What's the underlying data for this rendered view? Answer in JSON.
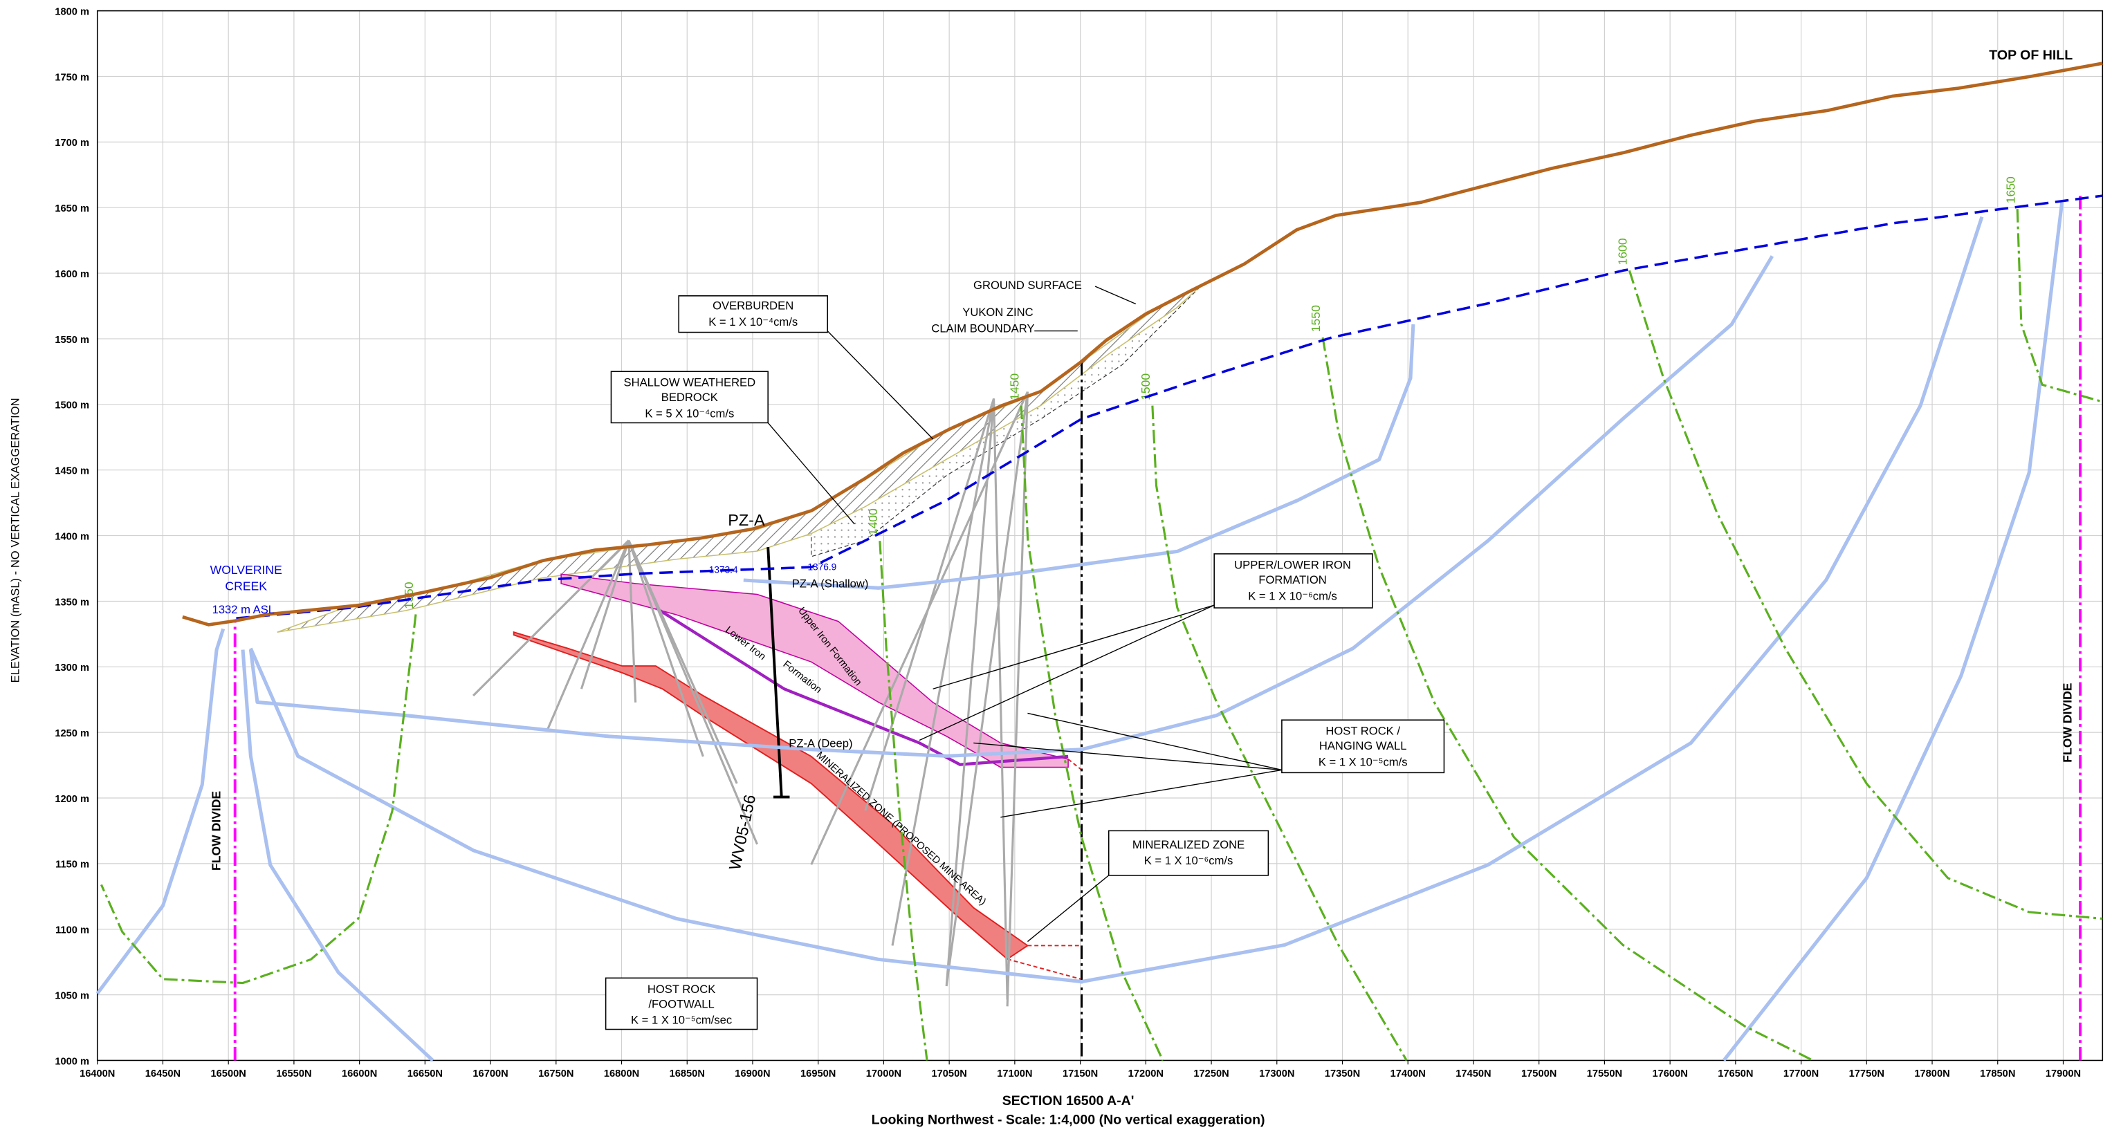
{
  "chart_data": {
    "type": "cross-section",
    "title": "SECTION 16500  A-A'",
    "subtitle": "Looking Northwest -  Scale: 1:4,000  (No vertical exaggeration)",
    "y_label": "ELEVATION (mASL) - NO VERTICAL EXAGGERATION",
    "xlim": [
      16400,
      17930
    ],
    "ylim": [
      1000,
      1800
    ],
    "grid": true,
    "xticks": [
      {
        "value": 16400,
        "label": "16400N"
      },
      {
        "value": 16450,
        "label": "16450N"
      },
      {
        "value": 16500,
        "label": "16500N"
      },
      {
        "value": 16550,
        "label": "16550N"
      },
      {
        "value": 16600,
        "label": "16600N"
      },
      {
        "value": 16650,
        "label": "16650N"
      },
      {
        "value": 16700,
        "label": "16700N"
      },
      {
        "value": 16750,
        "label": "16750N"
      },
      {
        "value": 16800,
        "label": "16800N"
      },
      {
        "value": 16850,
        "label": "16850N"
      },
      {
        "value": 16900,
        "label": "16900N"
      },
      {
        "value": 16950,
        "label": "16950N"
      },
      {
        "value": 17000,
        "label": "17000N"
      },
      {
        "value": 17050,
        "label": "17050N"
      },
      {
        "value": 17100,
        "label": "17100N"
      },
      {
        "value": 17150,
        "label": "17150N"
      },
      {
        "value": 17200,
        "label": "17200N"
      },
      {
        "value": 17250,
        "label": "17250N"
      },
      {
        "value": 17300,
        "label": "17300N"
      },
      {
        "value": 17350,
        "label": "17350N"
      },
      {
        "value": 17400,
        "label": "17400N"
      },
      {
        "value": 17450,
        "label": "17450N"
      },
      {
        "value": 17500,
        "label": "17500N"
      },
      {
        "value": 17550,
        "label": "17550N"
      },
      {
        "value": 17600,
        "label": "17600N"
      },
      {
        "value": 17650,
        "label": "17650N"
      },
      {
        "value": 17700,
        "label": "17700N"
      },
      {
        "value": 17750,
        "label": "17750N"
      },
      {
        "value": 17800,
        "label": "17800N"
      },
      {
        "value": 17850,
        "label": "17850N"
      },
      {
        "value": 17900,
        "label": "17900N"
      }
    ],
    "yticks": [
      {
        "value": 1000,
        "label": "1000  m"
      },
      {
        "value": 1050,
        "label": "1050  m"
      },
      {
        "value": 1100,
        "label": "1100  m"
      },
      {
        "value": 1150,
        "label": "1150  m"
      },
      {
        "value": 1200,
        "label": "1200  m"
      },
      {
        "value": 1250,
        "label": "1250  m"
      },
      {
        "value": 1300,
        "label": "1300  m"
      },
      {
        "value": 1350,
        "label": "1350  m"
      },
      {
        "value": 1400,
        "label": "1400  m"
      },
      {
        "value": 1450,
        "label": "1450  m"
      },
      {
        "value": 1500,
        "label": "1500  m"
      },
      {
        "value": 1550,
        "label": "1550  m"
      },
      {
        "value": 1600,
        "label": "1600  m"
      },
      {
        "value": 1650,
        "label": "1650  m"
      },
      {
        "value": 1700,
        "label": "1700  m"
      },
      {
        "value": 1750,
        "label": "1750  m"
      },
      {
        "value": 1800,
        "label": "1800  m"
      }
    ],
    "series": [
      {
        "kind": "flow-line",
        "color": "#a9c0f0",
        "x": [
          16400,
          16450,
          16480,
          16491,
          16496
        ],
        "y": [
          1051,
          1118,
          1210,
          1313,
          1329
        ]
      },
      {
        "kind": "flow-line",
        "color": "#a9c0f0",
        "x": [
          16656,
          16584,
          16532,
          16517,
          16511
        ],
        "y": [
          1000,
          1067,
          1149,
          1232,
          1313
        ]
      },
      {
        "kind": "flow-line",
        "color": "#a9c0f0",
        "x": [
          16517,
          16522,
          16635,
          16790,
          16945,
          17048,
          17151,
          17254,
          17358,
          17461,
          17564,
          17647,
          17678
        ],
        "y": [
          1313,
          1273,
          1263,
          1247,
          1237,
          1232,
          1237,
          1263,
          1314,
          1396,
          1489,
          1561,
          1613
        ]
      },
      {
        "kind": "flow-line",
        "color": "#a9c0f0",
        "x": [
          16517,
          16553,
          16687,
          16842,
          16996,
          17151,
          17306,
          17461,
          17616,
          17719,
          17791,
          17838
        ],
        "y": [
          1314,
          1232,
          1160,
          1108,
          1077,
          1060,
          1088,
          1149,
          1242,
          1366,
          1499,
          1643
        ]
      },
      {
        "kind": "flow-line",
        "color": "#a9c0f0",
        "x": [
          17641,
          17750,
          17822,
          17874,
          17899
        ],
        "y": [
          1000,
          1139,
          1293,
          1448,
          1654
        ]
      },
      {
        "kind": "flow-line",
        "color": "#a9c0f0",
        "x": [
          16893,
          16996,
          17100,
          17224,
          17316,
          17378,
          17402,
          17404
        ],
        "y": [
          1366,
          1360,
          1371,
          1388,
          1427,
          1458,
          1520,
          1561
        ]
      },
      {
        "kind": "equipotential",
        "name": "1350",
        "color": "#5ab01e",
        "x": [
          16643,
          16635,
          16625,
          16599,
          16563,
          16511,
          16450,
          16419,
          16403
        ],
        "y": [
          1340,
          1273,
          1190,
          1108,
          1077,
          1059,
          1062,
          1098,
          1134
        ]
      },
      {
        "kind": "equipotential",
        "name": "1400",
        "color": "#5ab01e",
        "x": [
          16997,
          17002,
          17012,
          17022,
          17033
        ],
        "y": [
          1396,
          1314,
          1190,
          1088,
          1000
        ]
      },
      {
        "kind": "equipotential",
        "name": "1450",
        "color": "#5ab01e",
        "x": [
          17105,
          17110,
          17131,
          17151,
          17182,
          17213
        ],
        "y": [
          1499,
          1396,
          1263,
          1170,
          1067,
          1000
        ]
      },
      {
        "kind": "equipotential",
        "name": "1500",
        "color": "#5ab01e",
        "x": [
          17205,
          17208,
          17224,
          17254,
          17296,
          17347,
          17399
        ],
        "y": [
          1499,
          1438,
          1345,
          1273,
          1190,
          1088,
          1000
        ]
      },
      {
        "kind": "equipotential",
        "name": "1550",
        "color": "#5ab01e",
        "x": [
          17335,
          17347,
          17378,
          17420,
          17481,
          17564,
          17657,
          17709
        ],
        "y": [
          1551,
          1479,
          1376,
          1273,
          1170,
          1088,
          1026,
          1000
        ]
      },
      {
        "kind": "equipotential",
        "name": "1600",
        "color": "#5ab01e",
        "x": [
          17569,
          17595,
          17636,
          17688,
          17750,
          17812,
          17874,
          17930
        ],
        "y": [
          1602,
          1520,
          1417,
          1314,
          1211,
          1139,
          1113,
          1108
        ]
      },
      {
        "kind": "equipotential",
        "name": "1650",
        "color": "#5ab01e",
        "x": [
          17865,
          17868,
          17884,
          17930
        ],
        "y": [
          1649,
          1561,
          1515,
          1502
        ]
      },
      {
        "kind": "flow-divide",
        "color": "#ff00ff",
        "x": [
          16505,
          16505
        ],
        "y": [
          1000,
          1335
        ]
      },
      {
        "kind": "flow-divide",
        "color": "#ff00ff",
        "x": [
          17913,
          17913
        ],
        "y": [
          1000,
          1660
        ]
      },
      {
        "kind": "water-table",
        "color": "#0000e0",
        "x": [
          16506,
          16594,
          16738,
          16811,
          16945,
          17048,
          17151,
          17234,
          17342,
          17461,
          17564,
          17667,
          17770,
          17930
        ],
        "y": [
          1337,
          1345,
          1366,
          1371,
          1376,
          1427,
          1489,
          1517,
          1551,
          1577,
          1602,
          1620,
          1638,
          1659
        ]
      },
      {
        "kind": "ground",
        "color": "#b5651d",
        "x": [
          16465,
          16485,
          16505,
          16530,
          16600,
          16650,
          16700,
          16740,
          16780,
          16820,
          16860,
          16900,
          16945,
          16985,
          17015,
          17050,
          17090,
          17120,
          17150,
          17170,
          17200,
          17235,
          17275,
          17315,
          17345,
          17410,
          17460,
          17510,
          17565,
          17615,
          17665,
          17720,
          17770,
          17820,
          17875,
          17930
        ],
        "y": [
          1338,
          1332,
          1335,
          1340,
          1347,
          1357,
          1368,
          1381,
          1389,
          1393,
          1398,
          1405,
          1419,
          1443,
          1463,
          1481,
          1499,
          1510,
          1532,
          1549,
          1569,
          1587,
          1607,
          1633,
          1644,
          1654,
          1667,
          1680,
          1692,
          1705,
          1716,
          1724,
          1735,
          1741,
          1750,
          1760
        ]
      }
    ],
    "annotations": [
      "TOP OF HILL",
      "GROUND  SURFACE",
      "YUKON  ZINC",
      "CLAIM  BOUNDARY",
      "OVERBURDEN",
      "K = 1 X 10⁻⁴cm/s",
      "SHALLOW WEATHERED",
      "BEDROCK",
      "K = 5 X 10⁻⁴cm/s",
      "PZ-A",
      "1373.4",
      "1376.9",
      "PZ-A (Shallow)",
      "PZ-A (Deep)",
      "WOLVERINE",
      "CREEK",
      "1332 m ASL",
      "Upper Iron Formation",
      "Lower Iron",
      "Formation",
      "MINERALIZED ZONE (PROPOSED MINE AREA)",
      "WV05-156",
      "UPPER/LOWER IRON",
      "FORMATION",
      "K = 1 X 10⁻⁶cm/s",
      "HOST ROCK /",
      "HANGING WALL",
      "K = 1 X 10⁻⁵cm/s",
      "MINERALIZED ZONE",
      "K = 1 X 10⁻⁶cm/s",
      "HOST ROCK",
      "/FOOTWALL",
      "K = 1 X 10⁻⁵cm/sec",
      "FLOW DIVIDE",
      "FLOW DIVIDE"
    ]
  }
}
